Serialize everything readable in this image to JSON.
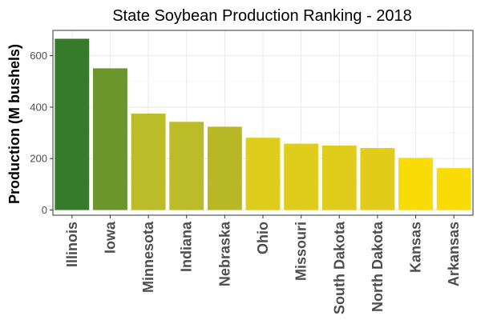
{
  "chart_data": {
    "type": "bar",
    "title": "State Soybean Production Ranking - 2018",
    "xlabel": "",
    "ylabel": "Production (M bushels)",
    "ylim": [
      0,
      700
    ],
    "yticks": [
      0,
      200,
      400,
      600
    ],
    "grid": true,
    "categories": [
      "Illinois",
      "Iowa",
      "Minnesota",
      "Indiana",
      "Nebraska",
      "Ohio",
      "Missouri",
      "South Dakota",
      "North Dakota",
      "Kansas",
      "Arkansas"
    ],
    "values": [
      666,
      551,
      375,
      343,
      324,
      281,
      258,
      251,
      241,
      203,
      163
    ],
    "colors": [
      "#367b2b",
      "#6b962c",
      "#bbbc27",
      "#bbbc27",
      "#b8b827",
      "#dfcc1b",
      "#dfcc1b",
      "#dfcc1b",
      "#e2cc1a",
      "#f9db06",
      "#f9db06"
    ]
  }
}
